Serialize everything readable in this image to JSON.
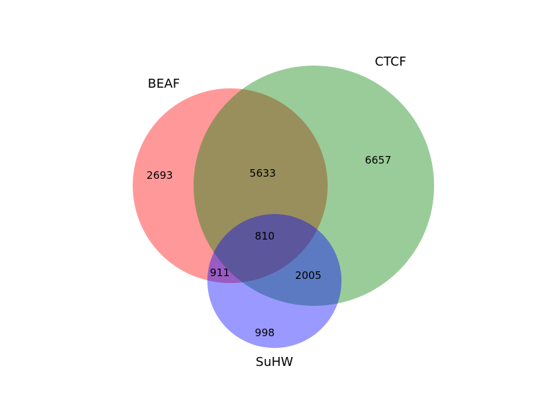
{
  "venn": {
    "sets": [
      {
        "key": "beaf",
        "label": "BEAF",
        "color": "#ff0000"
      },
      {
        "key": "ctcf",
        "label": "CTCF",
        "color": "#008000"
      },
      {
        "key": "suhw",
        "label": "SuHW",
        "color": "#0000ff"
      }
    ],
    "opacity": 0.4,
    "regions": {
      "beaf_only": "2693",
      "ctcf_only": "6657",
      "suhw_only": "998",
      "beaf_ctcf": "5633",
      "beaf_suhw": "911",
      "ctcf_suhw": "2005",
      "all_three": "810"
    }
  }
}
